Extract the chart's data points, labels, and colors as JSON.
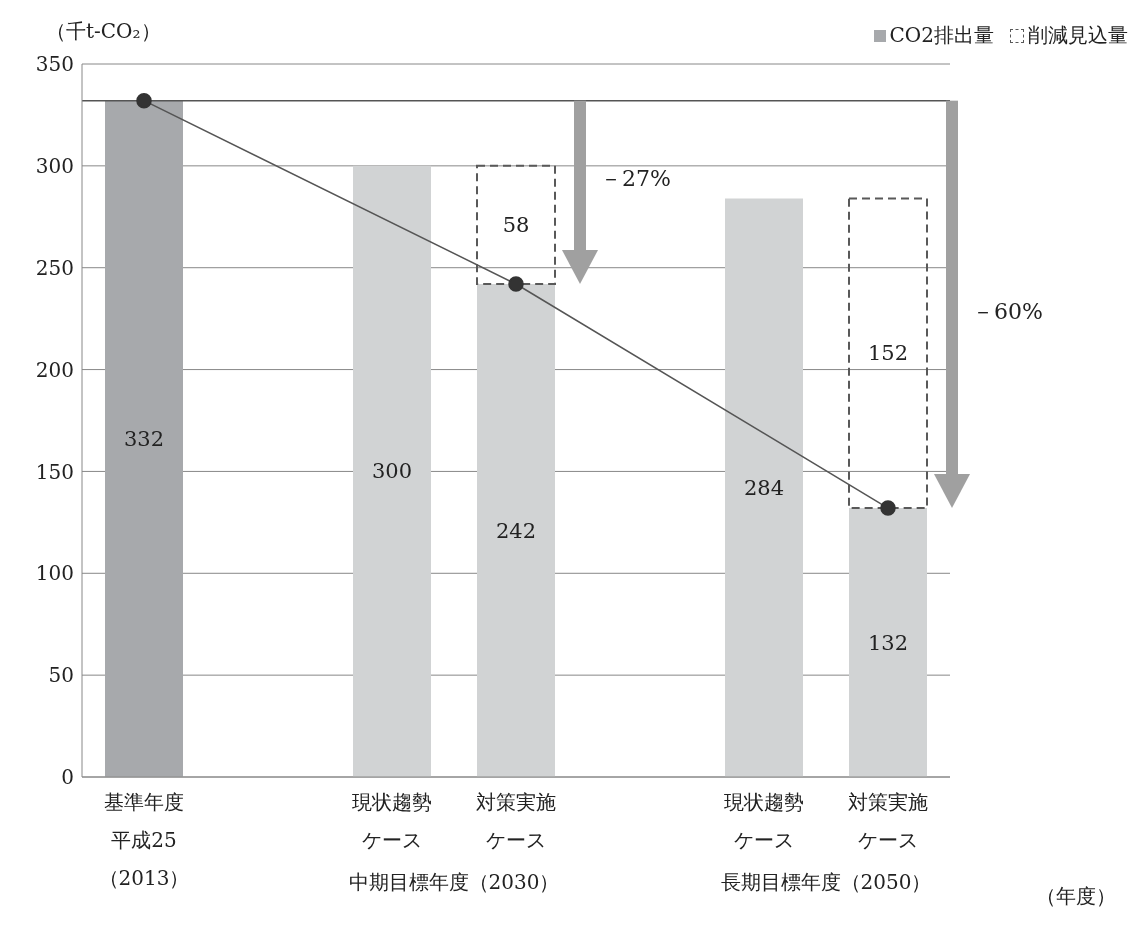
{
  "chart_data": {
    "type": "bar",
    "stacked": true,
    "ylabel": "（千t-CO₂）",
    "categories": [
      "基準年度平成25（2013）",
      null,
      "現状趨勢ケース",
      "対策実施ケース",
      null,
      "現状趨勢ケース",
      "対策実施ケース"
    ],
    "series": [
      {
        "name": "CO2排出量",
        "type": "bar",
        "colors": [
          "#a7a9ac",
          null,
          "#d1d3d4",
          "#d1d3d4",
          null,
          "#d1d3d4",
          "#d1d3d4"
        ],
        "color": "#a7a9ac",
        "values": [
          332,
          null,
          300,
          242,
          null,
          284,
          132
        ],
        "value_labels": [
          "332",
          null,
          "300",
          "242",
          null,
          "284",
          "132"
        ]
      },
      {
        "name": "削減見込量",
        "type": "bar",
        "color": "#595959",
        "line_style": "dashed",
        "values": [
          null,
          null,
          null,
          58,
          null,
          null,
          152
        ],
        "value_labels": [
          null,
          null,
          null,
          "58",
          null,
          null,
          "152"
        ]
      },
      {
        "type": "line",
        "color": "#555555",
        "marker": "circle",
        "values": [
          332,
          null,
          null,
          242,
          null,
          null,
          132
        ]
      }
    ],
    "ylim": [
      0,
      350
    ],
    "yticks": [
      0,
      50,
      100,
      150,
      200,
      250,
      300,
      350
    ],
    "grid": "y",
    "legend": "top right",
    "ref_lines": [
      {
        "axis": "y",
        "value": 332,
        "color": "#555555"
      }
    ],
    "annotations": [
      "中期目標年度（2030）",
      "長期目標年度（2050）",
      "－27%",
      "－60%",
      "（年度）"
    ]
  }
}
